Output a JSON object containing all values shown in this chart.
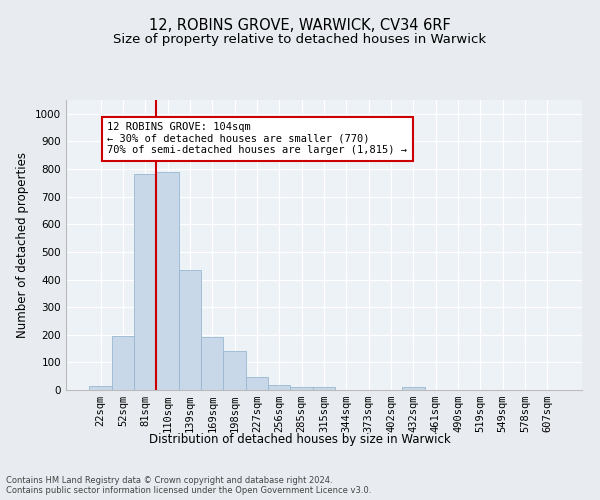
{
  "title1": "12, ROBINS GROVE, WARWICK, CV34 6RF",
  "title2": "Size of property relative to detached houses in Warwick",
  "xlabel": "Distribution of detached houses by size in Warwick",
  "ylabel": "Number of detached properties",
  "footnote": "Contains HM Land Registry data © Crown copyright and database right 2024.\nContains public sector information licensed under the Open Government Licence v3.0.",
  "categories": [
    "22sqm",
    "52sqm",
    "81sqm",
    "110sqm",
    "139sqm",
    "169sqm",
    "198sqm",
    "227sqm",
    "256sqm",
    "285sqm",
    "315sqm",
    "344sqm",
    "373sqm",
    "402sqm",
    "432sqm",
    "461sqm",
    "490sqm",
    "519sqm",
    "549sqm",
    "578sqm",
    "607sqm"
  ],
  "values": [
    15,
    197,
    783,
    790,
    435,
    192,
    142,
    48,
    18,
    10,
    10,
    0,
    0,
    0,
    10,
    0,
    0,
    0,
    0,
    0,
    0
  ],
  "bar_color": "#c8d8e8",
  "bar_edge_color": "#98b8d0",
  "vline_color": "#cc0000",
  "vline_position": 2.5,
  "annotation_text": "12 ROBINS GROVE: 104sqm\n← 30% of detached houses are smaller (770)\n70% of semi-detached houses are larger (1,815) →",
  "annotation_box_color": "#ffffff",
  "annotation_box_edge": "#cc0000",
  "ylim": [
    0,
    1050
  ],
  "yticks": [
    0,
    100,
    200,
    300,
    400,
    500,
    600,
    700,
    800,
    900,
    1000
  ],
  "bg_color": "#e8ecf0",
  "plot_bg_color": "#edf2f7",
  "title1_fontsize": 10.5,
  "title2_fontsize": 9.5,
  "axis_label_fontsize": 8.5,
  "tick_fontsize": 7.5,
  "footnote_fontsize": 6.0
}
